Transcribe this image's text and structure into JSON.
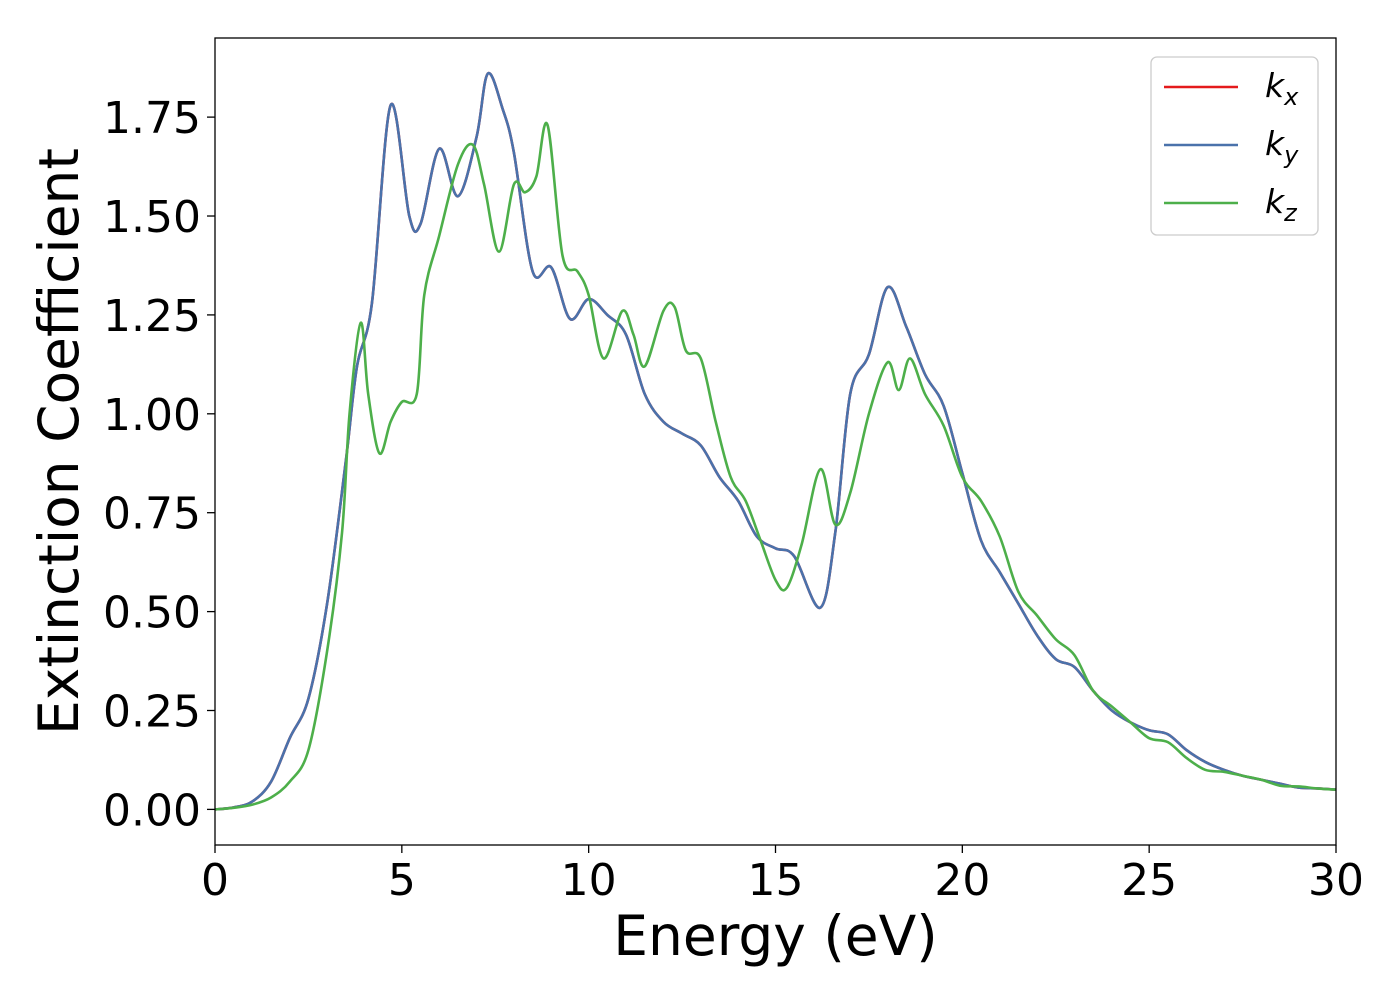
{
  "chart_data": {
    "type": "line",
    "title": "",
    "xlabel": "Energy (eV)",
    "ylabel": "Extinction Coefficient",
    "xlim": [
      0,
      30
    ],
    "ylim": [
      -0.09,
      1.95
    ],
    "xticks": [
      0,
      5,
      10,
      15,
      20,
      25,
      30
    ],
    "xtick_labels": [
      "0",
      "5",
      "10",
      "15",
      "20",
      "25",
      "30"
    ],
    "yticks": [
      0,
      0.25,
      0.5,
      0.75,
      1.0,
      1.25,
      1.5,
      1.75
    ],
    "ytick_labels": [
      "0.00",
      "0.25",
      "0.50",
      "0.75",
      "1.00",
      "1.25",
      "1.50",
      "1.75"
    ],
    "grid": false,
    "legend_position": "top-right",
    "series": [
      {
        "name": "k_x",
        "legend_base": "k",
        "legend_sub": "x",
        "color": "#e41a1c",
        "x": [
          0,
          0.5,
          1.0,
          1.5,
          2.0,
          2.5,
          3.0,
          3.5,
          3.8,
          4.2,
          4.7,
          5.2,
          5.5,
          6.0,
          6.5,
          7.0,
          7.3,
          7.7,
          8.0,
          8.5,
          9.0,
          9.5,
          10.0,
          10.5,
          11.0,
          11.5,
          12.0,
          12.5,
          13.0,
          13.5,
          14.0,
          14.5,
          15.0,
          15.5,
          16.2,
          16.6,
          17.0,
          17.5,
          18.0,
          18.5,
          19.0,
          19.5,
          20.0,
          20.5,
          21.0,
          21.5,
          22.0,
          22.5,
          23.0,
          23.5,
          24.0,
          24.5,
          25.0,
          25.5,
          26.0,
          26.5,
          27.0,
          27.5,
          28.0,
          28.5,
          29.0,
          29.5,
          30.0
        ],
        "y": [
          0.0,
          0.005,
          0.02,
          0.07,
          0.18,
          0.28,
          0.52,
          0.88,
          1.12,
          1.28,
          1.78,
          1.5,
          1.48,
          1.67,
          1.55,
          1.7,
          1.86,
          1.77,
          1.66,
          1.36,
          1.37,
          1.24,
          1.29,
          1.25,
          1.2,
          1.05,
          0.98,
          0.95,
          0.92,
          0.84,
          0.78,
          0.69,
          0.66,
          0.64,
          0.51,
          0.7,
          1.05,
          1.15,
          1.32,
          1.22,
          1.1,
          1.02,
          0.85,
          0.68,
          0.6,
          0.52,
          0.44,
          0.38,
          0.36,
          0.3,
          0.25,
          0.22,
          0.2,
          0.19,
          0.15,
          0.12,
          0.1,
          0.085,
          0.075,
          0.065,
          0.055,
          0.053,
          0.05
        ]
      },
      {
        "name": "k_y",
        "legend_base": "k",
        "legend_sub": "y",
        "color": "#4a72ab",
        "x": [
          0,
          0.5,
          1.0,
          1.5,
          2.0,
          2.5,
          3.0,
          3.5,
          3.8,
          4.2,
          4.7,
          5.2,
          5.5,
          6.0,
          6.5,
          7.0,
          7.3,
          7.7,
          8.0,
          8.5,
          9.0,
          9.5,
          10.0,
          10.5,
          11.0,
          11.5,
          12.0,
          12.5,
          13.0,
          13.5,
          14.0,
          14.5,
          15.0,
          15.5,
          16.2,
          16.6,
          17.0,
          17.5,
          18.0,
          18.5,
          19.0,
          19.5,
          20.0,
          20.5,
          21.0,
          21.5,
          22.0,
          22.5,
          23.0,
          23.5,
          24.0,
          24.5,
          25.0,
          25.5,
          26.0,
          26.5,
          27.0,
          27.5,
          28.0,
          28.5,
          29.0,
          29.5,
          30.0
        ],
        "y": [
          0.0,
          0.005,
          0.02,
          0.07,
          0.18,
          0.28,
          0.52,
          0.88,
          1.12,
          1.28,
          1.78,
          1.5,
          1.48,
          1.67,
          1.55,
          1.7,
          1.86,
          1.77,
          1.66,
          1.36,
          1.37,
          1.24,
          1.29,
          1.25,
          1.2,
          1.05,
          0.98,
          0.95,
          0.92,
          0.84,
          0.78,
          0.69,
          0.66,
          0.64,
          0.51,
          0.7,
          1.05,
          1.15,
          1.32,
          1.22,
          1.1,
          1.02,
          0.85,
          0.68,
          0.6,
          0.52,
          0.44,
          0.38,
          0.36,
          0.3,
          0.25,
          0.22,
          0.2,
          0.19,
          0.15,
          0.12,
          0.1,
          0.085,
          0.075,
          0.065,
          0.055,
          0.053,
          0.05
        ]
      },
      {
        "name": "k_z",
        "legend_base": "k",
        "legend_sub": "z",
        "color": "#4daf4a",
        "x": [
          0,
          0.5,
          1.0,
          1.5,
          2.0,
          2.5,
          3.0,
          3.4,
          3.6,
          3.9,
          4.1,
          4.4,
          4.7,
          5.0,
          5.4,
          5.6,
          6.0,
          6.5,
          6.9,
          7.2,
          7.6,
          8.0,
          8.3,
          8.6,
          8.9,
          9.3,
          9.7,
          10.0,
          10.4,
          10.9,
          11.2,
          11.5,
          12.0,
          12.3,
          12.6,
          13.0,
          13.4,
          13.8,
          14.2,
          14.6,
          15.0,
          15.3,
          15.7,
          16.2,
          16.6,
          17.0,
          17.5,
          18.0,
          18.3,
          18.6,
          19.0,
          19.5,
          20.0,
          20.5,
          21.0,
          21.5,
          22.0,
          22.5,
          23.0,
          23.5,
          24.0,
          24.5,
          25.0,
          25.5,
          26.0,
          26.5,
          27.0,
          27.5,
          28.0,
          28.5,
          29.0,
          29.5,
          30.0
        ],
        "y": [
          0.0,
          0.004,
          0.012,
          0.03,
          0.07,
          0.15,
          0.4,
          0.7,
          1.0,
          1.23,
          1.05,
          0.9,
          0.98,
          1.03,
          1.05,
          1.3,
          1.45,
          1.63,
          1.68,
          1.58,
          1.41,
          1.58,
          1.56,
          1.6,
          1.73,
          1.4,
          1.36,
          1.3,
          1.14,
          1.26,
          1.2,
          1.12,
          1.26,
          1.27,
          1.16,
          1.14,
          0.98,
          0.84,
          0.78,
          0.68,
          0.58,
          0.56,
          0.67,
          0.86,
          0.72,
          0.8,
          1.0,
          1.13,
          1.06,
          1.14,
          1.05,
          0.97,
          0.84,
          0.78,
          0.69,
          0.55,
          0.49,
          0.43,
          0.39,
          0.3,
          0.26,
          0.22,
          0.18,
          0.17,
          0.13,
          0.1,
          0.095,
          0.085,
          0.075,
          0.06,
          0.058,
          0.053,
          0.05
        ]
      }
    ]
  }
}
